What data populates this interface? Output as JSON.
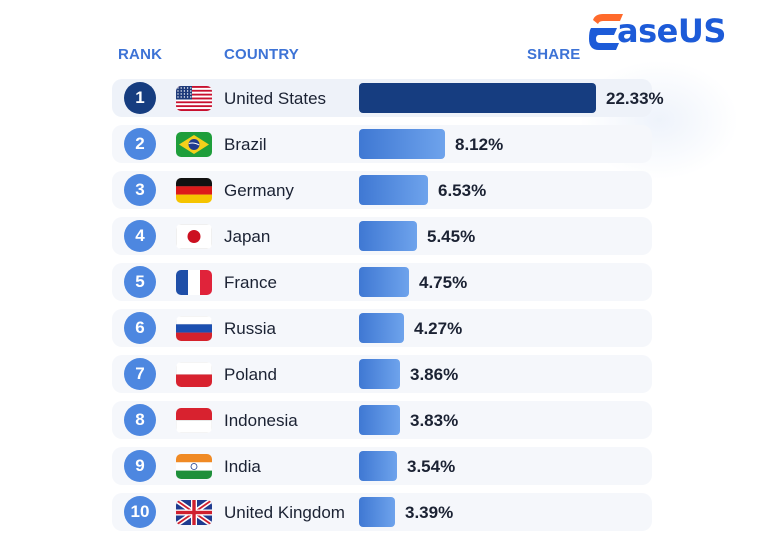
{
  "header": {
    "rank": "RANK",
    "country": "COUNTRY",
    "share": "SHARE"
  },
  "logo": {
    "text": "aseUS",
    "brand": "EaseUS",
    "colors": [
      "#ff6a2b",
      "#1d5bd8"
    ]
  },
  "colors": {
    "top_bar": "#163d80",
    "bar_gradient": [
      "#3f78d3",
      "#6ea3ec"
    ],
    "rank_circle": "#4d87e0"
  },
  "chart_data": {
    "type": "bar",
    "orientation": "horizontal",
    "title": "",
    "xlabel": "SHARE",
    "ylabel": "COUNTRY",
    "xlim": [
      0,
      22.33
    ],
    "categories": [
      "United States",
      "Brazil",
      "Germany",
      "Japan",
      "France",
      "Russia",
      "Poland",
      "Indonesia",
      "India",
      "United Kingdom"
    ],
    "ranks": [
      "1",
      "2",
      "3",
      "4",
      "5",
      "6",
      "7",
      "8",
      "9",
      "10"
    ],
    "values": [
      22.33,
      8.12,
      6.53,
      5.45,
      4.75,
      4.27,
      3.86,
      3.83,
      3.54,
      3.39
    ],
    "value_labels": [
      "22.33%",
      "8.12%",
      "6.53%",
      "5.45%",
      "4.75%",
      "4.27%",
      "3.86%",
      "3.83%",
      "3.54%",
      "3.39%"
    ],
    "flags": [
      "us-flag-icon",
      "brazil-flag-icon",
      "germany-flag-icon",
      "japan-flag-icon",
      "france-flag-icon",
      "russia-flag-icon",
      "poland-flag-icon",
      "indonesia-flag-icon",
      "india-flag-icon",
      "uk-flag-icon"
    ]
  }
}
